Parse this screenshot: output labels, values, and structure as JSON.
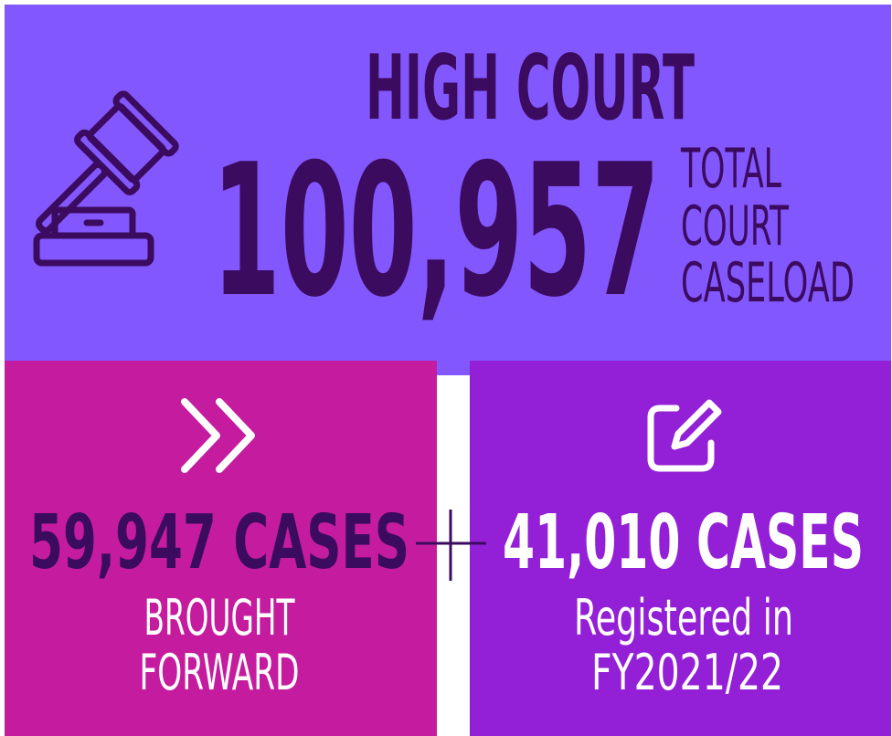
{
  "header": {
    "title": "HIGH COURT",
    "total": "100,957",
    "total_label": [
      "TOTAL",
      "COURT",
      "CASELOAD"
    ]
  },
  "brought_forward": {
    "count": "59,947 CASES",
    "label": [
      "BROUGHT",
      "FORWARD"
    ]
  },
  "registered": {
    "count": "41,010 CASES",
    "label": [
      "Registered in",
      "FY2021/22"
    ]
  }
}
